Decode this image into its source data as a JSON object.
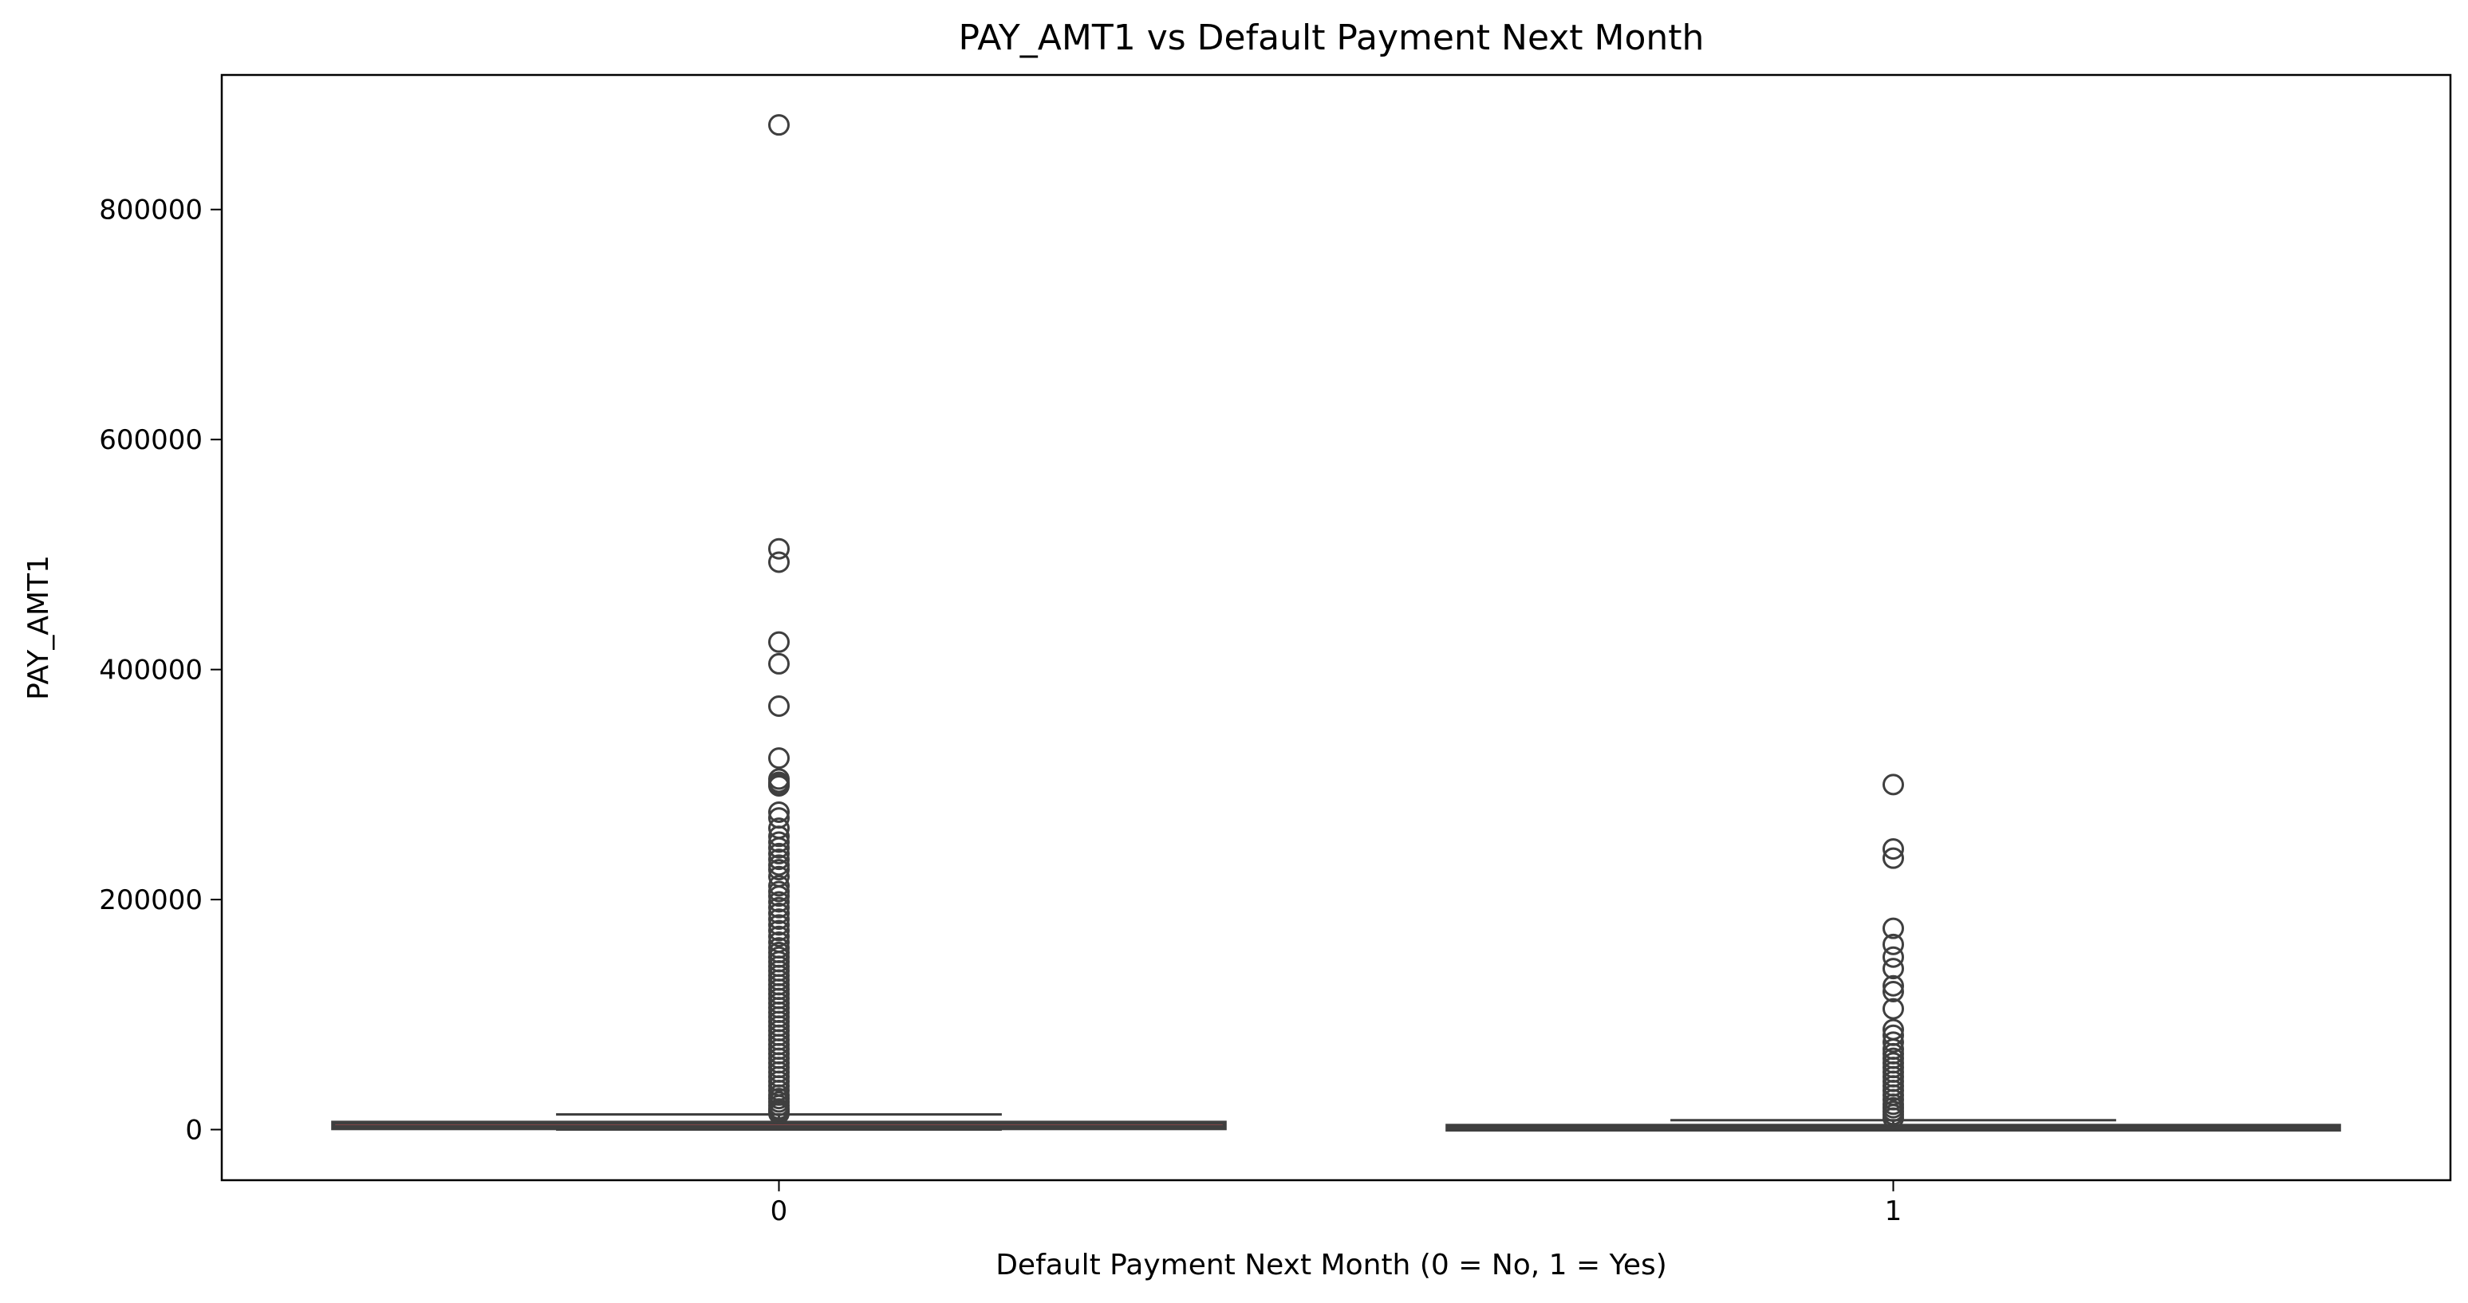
{
  "chart_data": {
    "type": "box",
    "title": "PAY_AMT1 vs Default Payment Next Month",
    "xlabel": "Default Payment Next Month (0 = No, 1 = Yes)",
    "ylabel": "PAY_AMT1",
    "ylim": [
      -44000,
      917000
    ],
    "yticks": [
      0,
      200000,
      400000,
      600000,
      800000
    ],
    "ytick_labels": [
      "0",
      "200000",
      "400000",
      "600000",
      "800000"
    ],
    "categories": [
      "0",
      "1"
    ],
    "grid": false,
    "legend": "none",
    "box_color": "#C44E52",
    "line_color": "#3F3F3F",
    "boxes": [
      {
        "category": "0",
        "q1": 1200,
        "median": 2500,
        "q3": 6000,
        "whisker_low": 0,
        "whisker_high": 13200,
        "outliers": [
          873552,
          505000,
          493358,
          423903,
          405016,
          368199,
          323014,
          304815,
          302000,
          300039,
          298887,
          276000,
          271000,
          262000,
          255000,
          250000,
          245000,
          240000,
          235000,
          230000,
          226000,
          220000,
          212000,
          207000,
          203000,
          198000,
          193000,
          188000,
          183000,
          178000,
          173000,
          168000,
          163000,
          158000,
          154000,
          150000,
          146000,
          142000,
          138000,
          134000,
          130000,
          126000,
          122000,
          118000,
          114000,
          110000,
          106000,
          102000,
          98000,
          94000,
          90000,
          86000,
          82000,
          78000,
          74000,
          70000,
          66000,
          62000,
          58000,
          54000,
          50000,
          46000,
          42000,
          38000,
          34000,
          30000,
          27000,
          24000,
          21000,
          18000,
          16000,
          14000
        ]
      },
      {
        "category": "1",
        "q1": 0,
        "median": 1600,
        "q3": 3300,
        "whisker_low": 0,
        "whisker_high": 8200,
        "outliers": [
          300000,
          244000,
          236000,
          175000,
          161000,
          150000,
          140000,
          125000,
          120000,
          105000,
          87000,
          82000,
          76000,
          70000,
          66000,
          62000,
          58000,
          54000,
          50000,
          46000,
          42000,
          38000,
          34000,
          30000,
          26000,
          22000,
          19000,
          16000,
          13000,
          10000
        ]
      }
    ]
  }
}
